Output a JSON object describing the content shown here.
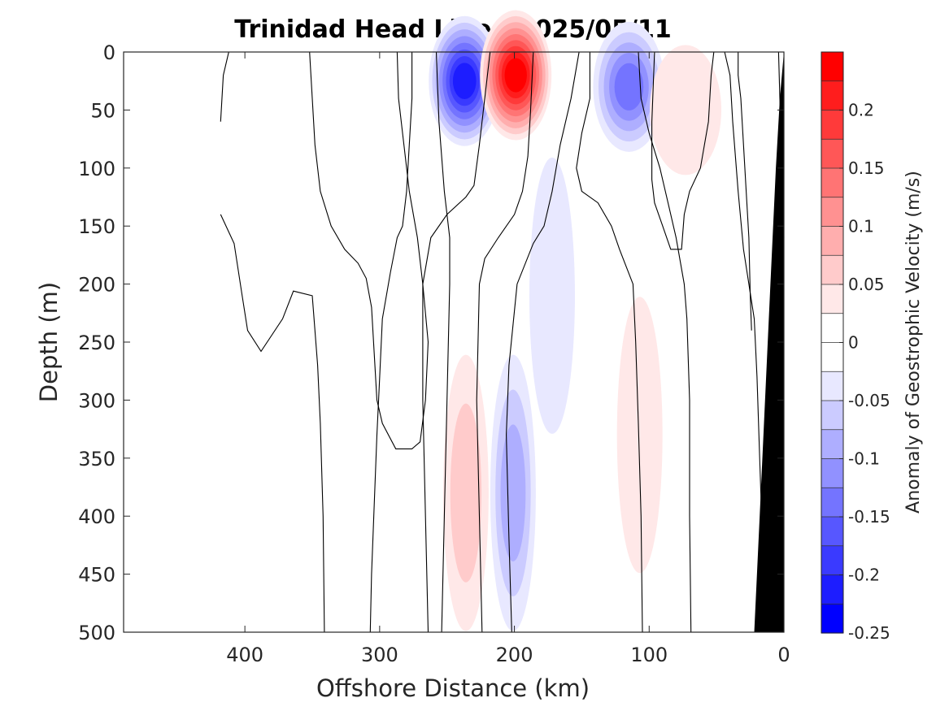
{
  "chart_data": {
    "type": "heatmap",
    "title": "Trinidad Head Line , 2025/05/11",
    "xlabel": "Offshore Distance (km)",
    "ylabel": "Depth (m)",
    "xlim": [
      490,
      0
    ],
    "ylim": [
      0,
      500
    ],
    "x_ticks": [
      400,
      300,
      200,
      100,
      0
    ],
    "y_ticks": [
      0,
      50,
      100,
      150,
      200,
      250,
      300,
      350,
      400,
      450,
      500
    ],
    "colorbar": {
      "label": "Anomaly of Geostrophic Velocity (m/s)",
      "range": [
        -0.25,
        0.25
      ],
      "ticks": [
        0.2,
        0.15,
        0.1,
        0.05,
        0,
        -0.05,
        -0.1,
        -0.15,
        -0.2,
        -0.25
      ],
      "colors": [
        "#ff0000",
        "#ff1d1d",
        "#ff3a3a",
        "#ff5757",
        "#ff7474",
        "#ff9191",
        "#ffaeae",
        "#ffcbcb",
        "#ffe8e8",
        "#ffffff",
        "#ffffff",
        "#e8e8ff",
        "#cbcbff",
        "#aeaeff",
        "#9191ff",
        "#7474ff",
        "#5757ff",
        "#3a3aff",
        "#1d1dff",
        "#0000ff"
      ]
    },
    "anomaly_features": [
      {
        "x_center": 237,
        "depth_center": 25,
        "peak": -0.21
      },
      {
        "x_center": 199,
        "depth_center": 20,
        "peak": 0.23
      },
      {
        "x_center": 115,
        "depth_center": 30,
        "peak": -0.14
      },
      {
        "x_center": 73,
        "depth_center": 50,
        "peak": 0.045
      },
      {
        "x_center": 236,
        "depth_center": 380,
        "peak": 0.055
      },
      {
        "x_center": 201,
        "depth_center": 380,
        "peak": -0.07
      },
      {
        "x_center": 172,
        "depth_center": 210,
        "peak": -0.035
      },
      {
        "x_center": 107,
        "depth_center": 330,
        "peak": 0.03
      }
    ],
    "zero_contours": [
      [
        [
          418,
          60
        ],
        [
          416,
          20
        ],
        [
          412,
          0
        ]
      ],
      [
        [
          418,
          140
        ],
        [
          408,
          165
        ],
        [
          402,
          210
        ],
        [
          398,
          240
        ],
        [
          388,
          258
        ],
        [
          372,
          230
        ],
        [
          364,
          206
        ],
        [
          350,
          210
        ],
        [
          346,
          270
        ],
        [
          344,
          320
        ],
        [
          342,
          400
        ],
        [
          341,
          500
        ]
      ],
      [
        [
          352,
          0
        ],
        [
          350,
          40
        ],
        [
          348,
          80
        ],
        [
          344,
          120
        ],
        [
          336,
          150
        ],
        [
          326,
          170
        ],
        [
          316,
          182
        ],
        [
          310,
          195
        ],
        [
          306,
          220
        ],
        [
          304,
          260
        ],
        [
          302,
          300
        ],
        [
          298,
          320
        ],
        [
          288,
          342
        ],
        [
          276,
          342
        ],
        [
          270,
          336
        ],
        [
          266,
          300
        ],
        [
          264,
          250
        ],
        [
          268,
          200
        ],
        [
          272,
          160
        ],
        [
          278,
          120
        ],
        [
          282,
          80
        ],
        [
          286,
          40
        ],
        [
          287,
          0
        ]
      ],
      [
        [
          276,
          0
        ],
        [
          276,
          40
        ],
        [
          278,
          80
        ],
        [
          280,
          120
        ],
        [
          283,
          150
        ],
        [
          287,
          160
        ],
        [
          292,
          190
        ],
        [
          298,
          230
        ],
        [
          300,
          280
        ],
        [
          302,
          330
        ],
        [
          304,
          390
        ],
        [
          306,
          450
        ],
        [
          307,
          500
        ]
      ],
      [
        [
          258,
          0
        ],
        [
          256,
          60
        ],
        [
          252,
          120
        ],
        [
          248,
          160
        ],
        [
          248,
          200
        ],
        [
          250,
          300
        ],
        [
          252,
          400
        ],
        [
          254,
          500
        ]
      ],
      [
        [
          218,
          0
        ],
        [
          222,
          40
        ],
        [
          226,
          80
        ],
        [
          230,
          115
        ],
        [
          236,
          125
        ],
        [
          250,
          140
        ],
        [
          262,
          160
        ],
        [
          268,
          200
        ],
        [
          268,
          300
        ],
        [
          266,
          400
        ],
        [
          264,
          500
        ]
      ],
      [
        [
          186,
          0
        ],
        [
          188,
          50
        ],
        [
          190,
          90
        ],
        [
          194,
          120
        ],
        [
          200,
          140
        ],
        [
          212,
          160
        ],
        [
          222,
          178
        ],
        [
          226,
          200
        ],
        [
          228,
          300
        ],
        [
          226,
          400
        ],
        [
          224,
          500
        ]
      ],
      [
        [
          152,
          0
        ],
        [
          158,
          40
        ],
        [
          166,
          80
        ],
        [
          172,
          120
        ],
        [
          178,
          150
        ],
        [
          186,
          165
        ],
        [
          198,
          200
        ],
        [
          204,
          270
        ],
        [
          206,
          330
        ],
        [
          204,
          420
        ],
        [
          202,
          500
        ]
      ],
      [
        [
          144,
          0
        ],
        [
          144,
          40
        ],
        [
          150,
          70
        ],
        [
          154,
          100
        ],
        [
          150,
          120
        ],
        [
          138,
          130
        ],
        [
          128,
          150
        ],
        [
          122,
          170
        ],
        [
          112,
          200
        ],
        [
          110,
          250
        ],
        [
          108,
          320
        ],
        [
          106,
          400
        ],
        [
          105,
          500
        ]
      ],
      [
        [
          108,
          0
        ],
        [
          106,
          40
        ],
        [
          100,
          70
        ],
        [
          92,
          100
        ],
        [
          86,
          130
        ],
        [
          80,
          160
        ],
        [
          74,
          200
        ],
        [
          72,
          230
        ],
        [
          70,
          300
        ],
        [
          70,
          400
        ],
        [
          69,
          500
        ]
      ],
      [
        [
          96,
          0
        ],
        [
          98,
          60
        ],
        [
          98,
          110
        ],
        [
          96,
          130
        ],
        [
          90,
          150
        ],
        [
          84,
          170
        ],
        [
          76,
          170
        ],
        [
          74,
          140
        ],
        [
          70,
          120
        ],
        [
          62,
          100
        ],
        [
          56,
          60
        ],
        [
          54,
          20
        ],
        [
          52,
          0
        ]
      ],
      [
        [
          44,
          0
        ],
        [
          40,
          20
        ],
        [
          38,
          60
        ],
        [
          34,
          120
        ],
        [
          30,
          170
        ],
        [
          26,
          200
        ],
        [
          22,
          230
        ],
        [
          20,
          280
        ],
        [
          18,
          350
        ],
        [
          16,
          420
        ],
        [
          15,
          500
        ]
      ],
      [
        [
          34,
          0
        ],
        [
          34,
          20
        ],
        [
          32,
          40
        ],
        [
          30,
          80
        ],
        [
          28,
          120
        ],
        [
          26,
          160
        ],
        [
          25,
          210
        ],
        [
          24,
          240
        ]
      ],
      [
        [
          4,
          0
        ],
        [
          3,
          40
        ],
        [
          2,
          80
        ],
        [
          1,
          120
        ],
        [
          0,
          160
        ]
      ]
    ],
    "bathymetry": [
      [
        0,
        0
      ],
      [
        3,
        40
      ],
      [
        6,
        100
      ],
      [
        10,
        200
      ],
      [
        14,
        300
      ],
      [
        18,
        400
      ],
      [
        22,
        500
      ],
      [
        0,
        500
      ]
    ]
  }
}
